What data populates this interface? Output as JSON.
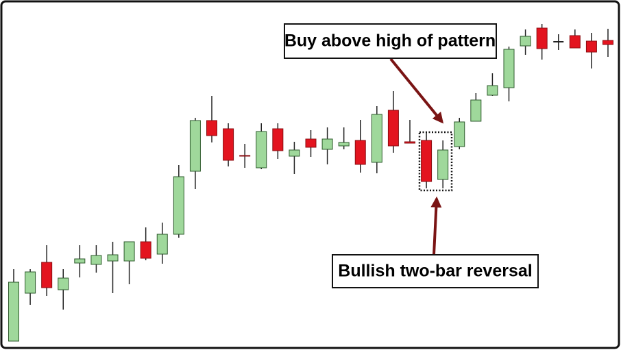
{
  "chart_data": {
    "type": "candlestick",
    "open": [
      7,
      77,
      122,
      82,
      121,
      119,
      124,
      124,
      152,
      134,
      163,
      255,
      329,
      317,
      278,
      260,
      317,
      277,
      302,
      287,
      292,
      300,
      268,
      344,
      298,
      300,
      243,
      291,
      328,
      366,
      377,
      438,
      464,
      444,
      453,
      445,
      446
    ],
    "high": [
      112,
      112,
      147,
      112,
      147,
      147,
      152,
      152,
      173,
      180,
      264,
      333,
      365,
      325,
      295,
      325,
      325,
      298,
      315,
      319,
      319,
      330,
      350,
      372,
      330,
      312,
      300,
      333,
      369,
      398,
      437,
      462,
      470,
      455,
      462,
      457,
      463
    ],
    "low": [
      7,
      60,
      73,
      53,
      100,
      107,
      77,
      90,
      125,
      120,
      158,
      229,
      297,
      262,
      260,
      258,
      273,
      251,
      276,
      265,
      287,
      253,
      252,
      282,
      296,
      230,
      230,
      287,
      328,
      365,
      357,
      425,
      418,
      432,
      435,
      405,
      422
    ],
    "close": [
      93,
      108,
      85,
      99,
      127,
      132,
      133,
      152,
      128,
      163,
      247,
      329,
      307,
      271,
      277,
      313,
      285,
      286,
      290,
      302,
      297,
      265,
      338,
      292,
      296,
      240,
      286,
      327,
      359,
      380,
      433,
      452,
      434,
      444,
      435,
      429,
      440
    ],
    "up_color": "#9fd89b",
    "down_color": "#e3141f",
    "ylim": [
      0,
      500
    ],
    "annotations": [
      "Buy above high of pattern",
      "Bullish two-bar reversal"
    ]
  }
}
